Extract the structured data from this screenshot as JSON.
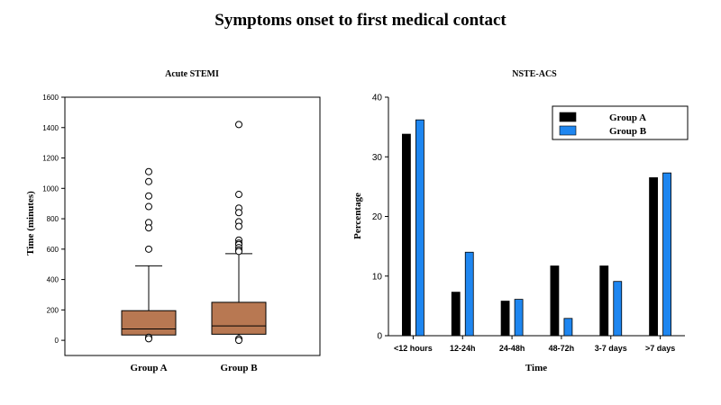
{
  "title": "Symptoms onset to first medical contact",
  "chart_data": [
    {
      "type": "box",
      "title": "Acute STEMI",
      "xlabel": "",
      "ylabel": "Time (minutes)",
      "ylim": [
        -100,
        1600
      ],
      "yticks": [
        0,
        200,
        400,
        600,
        800,
        1000,
        1200,
        1400,
        1600
      ],
      "grid": false,
      "categories": [
        "Group A",
        "Group B"
      ],
      "boxes": [
        {
          "category": "Group A",
          "color": "#b87852",
          "q1": 35,
          "median": 75,
          "q3": 195,
          "whisker_low": 10,
          "whisker_high": 490,
          "outliers": [
            1110,
            1045,
            950,
            880,
            775,
            740,
            600,
            20,
            10
          ]
        },
        {
          "category": "Group B",
          "color": "#b87852",
          "q1": 40,
          "median": 95,
          "q3": 250,
          "whisker_low": 10,
          "whisker_high": 570,
          "outliers": [
            1420,
            960,
            870,
            840,
            780,
            750,
            660,
            640,
            630,
            610,
            595,
            585,
            10,
            0
          ]
        }
      ]
    },
    {
      "type": "bar",
      "title": "NSTE-ACS",
      "xlabel": "Time",
      "ylabel": "Percentage",
      "ylim": [
        0,
        40
      ],
      "yticks": [
        0,
        10,
        20,
        30,
        40
      ],
      "grid": false,
      "legend_position": "top-right",
      "categories": [
        "<12 hours",
        "12-24h",
        "24-48h",
        "48-72h",
        "3-7 days",
        ">7 days"
      ],
      "series": [
        {
          "name": "Group A",
          "color": "#000000",
          "values": [
            33.8,
            7.3,
            5.8,
            11.7,
            11.7,
            26.5
          ]
        },
        {
          "name": "Group B",
          "color": "#1e86f0",
          "values": [
            36.2,
            14.0,
            6.1,
            2.9,
            9.1,
            27.3
          ]
        }
      ]
    }
  ]
}
